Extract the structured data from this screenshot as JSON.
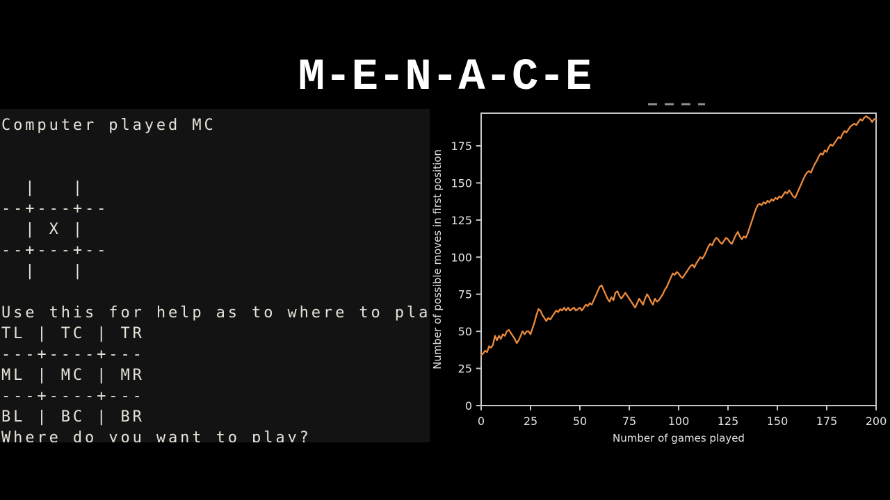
{
  "slide": {
    "title": "M-E-N-A-C-E",
    "background_color": "#000000",
    "title_color": "#ffffff"
  },
  "terminal": {
    "background_color": "#131313",
    "text_color": "#e6e2d8",
    "status_line": "Computer played MC",
    "prompt_line": "Where do you want to play?",
    "lines": [
      "Computer played MC",
      "",
      "",
      "  |   |",
      "--+---+--",
      "  | X |",
      "--+---+--",
      "  |   |",
      "",
      "Use this for help as to where to play",
      "TL | TC | TR",
      "---+----+---",
      "ML | MC | MR",
      "---+----+---",
      "BL | BC | BR",
      "Where do you want to play?"
    ]
  },
  "chart_data": {
    "type": "line",
    "title": "",
    "xlabel": "Number of games played",
    "ylabel": "Number of possible moves in first position",
    "xticks": [
      0,
      25,
      50,
      75,
      100,
      125,
      150,
      175,
      200
    ],
    "yticks": [
      0,
      25,
      50,
      75,
      100,
      125,
      150,
      175
    ],
    "xlim": [
      0,
      200
    ],
    "ylim": [
      0,
      197
    ],
    "grid": false,
    "legend_position": "none",
    "line_color": "#ed8b3d",
    "axis_color": "#c8c8c8",
    "tick_label_color": "#e3e3e3",
    "plot_background": "#000000",
    "series": [
      {
        "name": "possible moves in first position",
        "x_start": 0,
        "x_step": 1,
        "values": [
          34,
          35,
          37,
          36,
          40,
          39,
          41,
          47,
          44,
          47,
          45,
          48,
          47,
          50,
          51,
          49,
          47,
          45,
          42,
          44,
          47,
          50,
          48,
          50,
          50,
          48,
          52,
          56,
          61,
          65,
          64,
          61,
          59,
          57,
          59,
          58,
          60,
          62,
          64,
          63,
          65,
          64,
          66,
          64,
          66,
          64,
          65,
          66,
          64,
          65,
          66,
          64,
          66,
          68,
          67,
          69,
          68,
          71,
          74,
          77,
          80,
          81,
          78,
          75,
          72,
          70,
          73,
          71,
          76,
          77,
          74,
          72,
          74,
          76,
          74,
          72,
          70,
          68,
          66,
          69,
          72,
          70,
          68,
          72,
          75,
          73,
          70,
          68,
          72,
          70,
          71,
          73,
          75,
          78,
          80,
          83,
          86,
          89,
          88,
          90,
          89,
          87,
          86,
          88,
          90,
          92,
          94,
          95,
          93,
          96,
          98,
          100,
          99,
          101,
          104,
          107,
          109,
          108,
          111,
          113,
          112,
          110,
          109,
          111,
          113,
          112,
          110,
          109,
          112,
          115,
          117,
          114,
          112,
          114,
          113,
          116,
          120,
          124,
          128,
          132,
          135,
          136,
          135,
          137,
          136,
          138,
          137,
          139,
          138,
          140,
          139,
          141,
          140,
          142,
          144,
          143,
          145,
          143,
          141,
          140,
          143,
          146,
          149,
          152,
          155,
          157,
          158,
          157,
          160,
          163,
          165,
          168,
          170,
          169,
          172,
          171,
          174,
          176,
          175,
          177,
          179,
          181,
          180,
          183,
          185,
          184,
          186,
          188,
          189,
          190,
          189,
          191,
          193,
          192,
          194,
          195,
          194,
          193,
          191,
          193,
          193
        ]
      }
    ]
  }
}
